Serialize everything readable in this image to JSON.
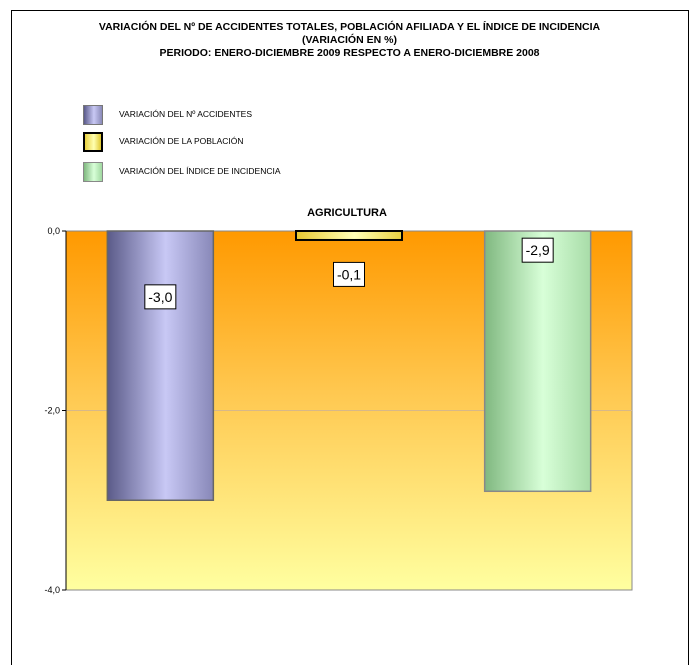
{
  "title": {
    "line1": "VARIACIÓN DEL Nº DE ACCIDENTES TOTALES, POBLACIÓN AFILIADA Y EL ÍNDICE DE INCIDENCIA",
    "line2": "(VARIACIÓN EN %)",
    "line3": "PERIODO: ENERO-DICIEMBRE 2009 RESPECTO A ENERO-DICIEMBRE 2008"
  },
  "legend": {
    "items": [
      {
        "label": "VARIACIÓN DEL Nº ACCIDENTES",
        "color": "#9a9acc"
      },
      {
        "label": "VARIACIÓN DE LA POBLACIÓN",
        "color": "#ffff66"
      },
      {
        "label": "VARIACIÓN DEL ÍNDICE DE  INCIDENCIA",
        "color": "#b8f0b8"
      }
    ]
  },
  "chart_data": {
    "type": "bar",
    "title": "AGRICULTURA",
    "categories": [
      "VARIACIÓN DEL Nº ACCIDENTES",
      "VARIACIÓN DE LA POBLACIÓN",
      "VARIACIÓN DEL ÍNDICE DE  INCIDENCIA"
    ],
    "values": [
      -3.0,
      -0.1,
      -2.9
    ],
    "data_labels": [
      "-3,0",
      "-0,1",
      "-2,9"
    ],
    "ylim": [
      -4,
      0
    ],
    "yticks": [
      0,
      -2,
      -4
    ],
    "ytick_labels": [
      "0,0",
      "-2,0",
      "-4,0"
    ],
    "grid": true,
    "legend_position": "top-left",
    "colors": {
      "background_top": "#ff9900",
      "background_bottom": "#ffffa0",
      "bar1": "#9a9acc",
      "bar2": "#ffff66",
      "bar3": "#b8f0b8"
    }
  }
}
